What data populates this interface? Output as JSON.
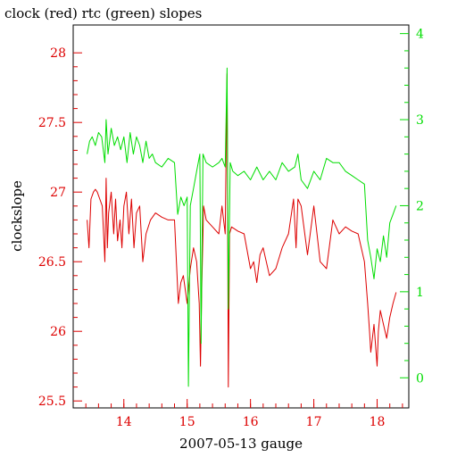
{
  "chart_data": {
    "type": "line",
    "title": "clock (red) rtc (green) slopes",
    "xlabel": "2007-05-13 gauge",
    "ylabel": "clockslope",
    "xlim": [
      13.2,
      18.5
    ],
    "ylim": [
      25.45,
      28.2
    ],
    "y2lim": [
      -0.35,
      4.1
    ],
    "x_ticks": [
      14,
      15,
      16,
      17,
      18
    ],
    "y_ticks": [
      25.5,
      26,
      26.5,
      27,
      27.5,
      28
    ],
    "y2_ticks": [
      0,
      1,
      2,
      3,
      4
    ],
    "colors": {
      "clock": "#dd0000",
      "rtc": "#00dd00",
      "axes": "#000000"
    },
    "series": [
      {
        "name": "clock",
        "axis": "left",
        "x": [
          13.42,
          13.45,
          13.48,
          13.52,
          13.55,
          13.58,
          13.62,
          13.66,
          13.7,
          13.72,
          13.74,
          13.76,
          13.8,
          13.84,
          13.87,
          13.9,
          13.94,
          13.97,
          14.0,
          14.04,
          14.08,
          14.12,
          14.16,
          14.2,
          14.25,
          14.3,
          14.35,
          14.42,
          14.5,
          14.6,
          14.7,
          14.8,
          14.86,
          14.9,
          14.94,
          15.0,
          15.05,
          15.1,
          15.15,
          15.19,
          15.21,
          15.23,
          15.26,
          15.3,
          15.4,
          15.5,
          15.55,
          15.6,
          15.63,
          15.65,
          15.67,
          15.7,
          15.8,
          15.9,
          16.0,
          16.05,
          16.1,
          16.15,
          16.2,
          16.3,
          16.4,
          16.5,
          16.6,
          16.68,
          16.72,
          16.75,
          16.8,
          16.9,
          17.0,
          17.1,
          17.2,
          17.3,
          17.4,
          17.5,
          17.6,
          17.7,
          17.8,
          17.85,
          17.88,
          17.9,
          17.95,
          18.0,
          18.02,
          18.05,
          18.1,
          18.15,
          18.2,
          18.25,
          18.3
        ],
        "y": [
          26.8,
          26.6,
          26.95,
          27.0,
          27.02,
          27.0,
          26.95,
          26.9,
          26.5,
          27.1,
          26.6,
          26.85,
          27.0,
          26.7,
          26.95,
          26.65,
          26.8,
          26.6,
          26.9,
          27.0,
          26.7,
          26.95,
          26.6,
          26.85,
          26.9,
          26.5,
          26.7,
          26.8,
          26.85,
          26.82,
          26.8,
          26.8,
          26.2,
          26.35,
          26.4,
          26.2,
          26.45,
          26.6,
          26.5,
          26.2,
          25.75,
          26.3,
          26.9,
          26.8,
          26.75,
          26.7,
          26.9,
          26.7,
          27.85,
          25.6,
          26.7,
          26.75,
          26.72,
          26.7,
          26.45,
          26.5,
          26.35,
          26.55,
          26.6,
          26.4,
          26.45,
          26.6,
          26.7,
          26.95,
          26.6,
          26.95,
          26.9,
          26.55,
          26.9,
          26.5,
          26.45,
          26.8,
          26.7,
          26.75,
          26.72,
          26.7,
          26.5,
          26.2,
          26.0,
          25.85,
          26.05,
          25.75,
          26.0,
          26.15,
          26.05,
          25.95,
          26.1,
          26.2,
          26.28
        ]
      },
      {
        "name": "rtc",
        "axis": "right",
        "x": [
          13.42,
          13.46,
          13.5,
          13.55,
          13.6,
          13.65,
          13.7,
          13.72,
          13.75,
          13.8,
          13.85,
          13.9,
          13.95,
          14.0,
          14.05,
          14.1,
          14.15,
          14.2,
          14.25,
          14.3,
          14.35,
          14.4,
          14.45,
          14.5,
          14.6,
          14.7,
          14.8,
          14.85,
          14.9,
          14.95,
          15.0,
          15.02,
          15.05,
          15.1,
          15.15,
          15.2,
          15.22,
          15.25,
          15.3,
          15.4,
          15.5,
          15.55,
          15.6,
          15.63,
          15.65,
          15.68,
          15.72,
          15.8,
          15.9,
          16.0,
          16.1,
          16.2,
          16.3,
          16.4,
          16.5,
          16.6,
          16.7,
          16.75,
          16.8,
          16.9,
          17.0,
          17.1,
          17.2,
          17.3,
          17.4,
          17.5,
          17.6,
          17.7,
          17.8,
          17.85,
          17.9,
          17.95,
          18.0,
          18.05,
          18.1,
          18.15,
          18.2,
          18.25,
          18.3
        ],
        "y": [
          2.6,
          2.75,
          2.8,
          2.7,
          2.85,
          2.8,
          2.5,
          3.0,
          2.6,
          2.9,
          2.7,
          2.8,
          2.65,
          2.8,
          2.5,
          2.85,
          2.6,
          2.8,
          2.7,
          2.5,
          2.75,
          2.55,
          2.6,
          2.5,
          2.45,
          2.55,
          2.5,
          1.9,
          2.1,
          2.0,
          2.1,
          -0.1,
          2.0,
          2.2,
          2.4,
          2.6,
          0.4,
          2.6,
          2.5,
          2.45,
          2.5,
          2.55,
          2.45,
          3.6,
          0.8,
          2.5,
          2.4,
          2.35,
          2.4,
          2.3,
          2.45,
          2.3,
          2.4,
          2.3,
          2.5,
          2.4,
          2.45,
          2.6,
          2.3,
          2.2,
          2.4,
          2.3,
          2.55,
          2.5,
          2.5,
          2.4,
          2.35,
          2.3,
          2.25,
          1.6,
          1.4,
          1.15,
          1.5,
          1.35,
          1.65,
          1.4,
          1.8,
          1.9,
          2.0
        ]
      }
    ]
  }
}
